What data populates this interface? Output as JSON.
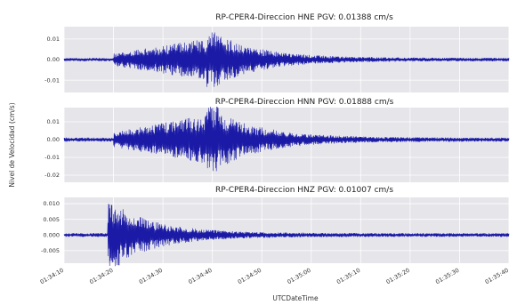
{
  "chart_data": {
    "type": "line",
    "shared_xlabel": "UTCDateTime",
    "shared_ylabel": "Nivel de Velocidad (cm/s)",
    "x_ticks": [
      "01:34:10",
      "01:34:20",
      "01:34:30",
      "01:34:40",
      "01:34:50",
      "01:35:00",
      "01:35:10",
      "01:35:20",
      "01:35:30",
      "01:35:40"
    ],
    "xlim": [
      "01:34:10",
      "01:35:40"
    ],
    "grid": true,
    "line_color": "#1a1aa6",
    "panel_color": "#e5e5ea",
    "panels": [
      {
        "title": "RP-CPER4-Direccion HNE PGV: 0.01388 cm/s",
        "y_ticks": [
          "0.01",
          "0.00",
          "-0.01"
        ],
        "ylim": [
          -0.016,
          0.016
        ],
        "pgv": 0.01388,
        "signal_start": "01:34:10",
        "signal_end": "01:35:40",
        "event_onset": "01:34:20",
        "peak_time": "01:34:40"
      },
      {
        "title": "RP-CPER4-Direccion HNN PGV: 0.01888 cm/s",
        "y_ticks": [
          "0.01",
          "0.00",
          "-0.01",
          "-0.02"
        ],
        "ylim": [
          -0.024,
          0.018
        ],
        "pgv": 0.01888,
        "signal_start": "01:34:10",
        "signal_end": "01:35:40",
        "event_onset": "01:34:20",
        "peak_time": "01:34:40"
      },
      {
        "title": "RP-CPER4-Direccion HNZ PGV: 0.01007 cm/s",
        "y_ticks": [
          "0.010",
          "0.005",
          "0.000",
          "-0.005"
        ],
        "ylim": [
          -0.009,
          0.012
        ],
        "pgv": 0.01007,
        "signal_start": "01:34:10",
        "signal_end": "01:35:40",
        "event_onset": "01:34:20",
        "peak_time": "01:34:20"
      }
    ]
  }
}
